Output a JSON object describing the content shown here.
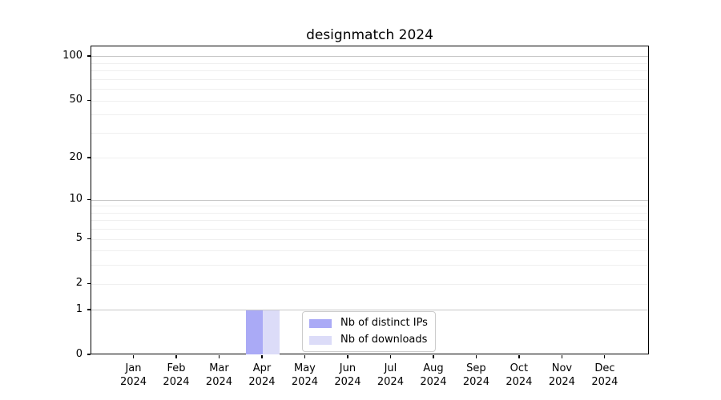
{
  "title": "designmatch 2024",
  "colors": {
    "background": "#ffffff",
    "spine": "#000000",
    "grid_major": "#c7c7c7",
    "grid_minor": "#efefef",
    "legend_border": "#cccccc",
    "bar_distinct_ips": "#aaaaf6",
    "bar_downloads": "#dcdcf8"
  },
  "chart_data": {
    "type": "bar",
    "title": "designmatch 2024",
    "xlabel": "",
    "ylabel": "",
    "y_scale": "log1p",
    "ylim": [
      0,
      117.6
    ],
    "grid": "on",
    "legend_position": "lower center",
    "categories": [
      "Jan 2024",
      "Feb 2024",
      "Mar 2024",
      "Apr 2024",
      "May 2024",
      "Jun 2024",
      "Jul 2024",
      "Aug 2024",
      "Sep 2024",
      "Oct 2024",
      "Nov 2024",
      "Dec 2024"
    ],
    "x_tick_labels": [
      {
        "month": "Jan",
        "year": "2024"
      },
      {
        "month": "Feb",
        "year": "2024"
      },
      {
        "month": "Mar",
        "year": "2024"
      },
      {
        "month": "Apr",
        "year": "2024"
      },
      {
        "month": "May",
        "year": "2024"
      },
      {
        "month": "Jun",
        "year": "2024"
      },
      {
        "month": "Jul",
        "year": "2024"
      },
      {
        "month": "Aug",
        "year": "2024"
      },
      {
        "month": "Sep",
        "year": "2024"
      },
      {
        "month": "Oct",
        "year": "2024"
      },
      {
        "month": "Nov",
        "year": "2024"
      },
      {
        "month": "Dec",
        "year": "2024"
      }
    ],
    "y_tick_labels": [
      0,
      1,
      2,
      5,
      10,
      20,
      50,
      100
    ],
    "y_major_gridlines": [
      1,
      10,
      100
    ],
    "y_minor_gridlines": [
      2,
      3,
      4,
      5,
      6,
      7,
      8,
      9,
      20,
      30,
      40,
      50,
      60,
      70,
      80,
      90
    ],
    "series": [
      {
        "name": "Nb of distinct IPs",
        "color": "#aaaaf6",
        "values": [
          0,
          0,
          0,
          1,
          0,
          0,
          0,
          0,
          0,
          0,
          0,
          0
        ]
      },
      {
        "name": "Nb of downloads",
        "color": "#dcdcf8",
        "values": [
          0,
          0,
          0,
          1,
          0,
          0,
          0,
          0,
          0,
          0,
          0,
          0
        ]
      }
    ]
  }
}
